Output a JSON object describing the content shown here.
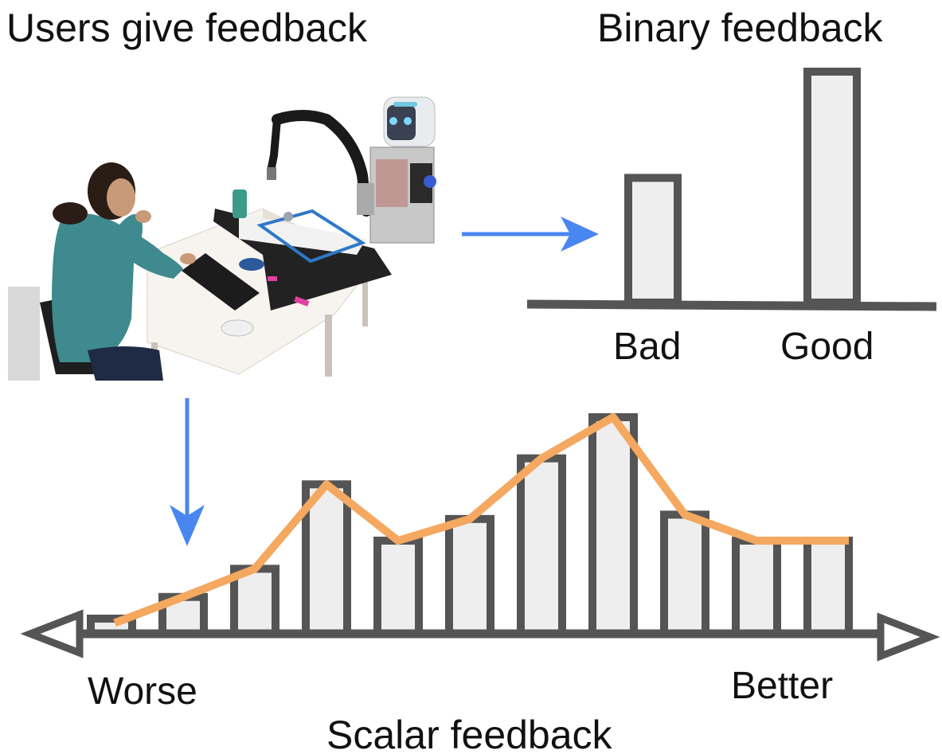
{
  "titles": {
    "users": "Users give feedback",
    "binary": "Binary feedback",
    "scalar": "Scalar feedback"
  },
  "binary_chart": {
    "labels": [
      "Bad",
      "Good"
    ],
    "values": [
      0.54,
      1.0
    ]
  },
  "scalar_chart": {
    "left_label": "Worse",
    "right_label": "Better",
    "values": [
      0.07,
      0.17,
      0.3,
      0.69,
      0.43,
      0.53,
      0.81,
      1.0,
      0.55,
      0.43,
      0.43
    ],
    "line_values": [
      0.05,
      0.17,
      0.3,
      0.69,
      0.43,
      0.53,
      0.81,
      1.0,
      0.55,
      0.43,
      0.43
    ]
  },
  "colors": {
    "bar_fill": "#eeeeee",
    "bar_stroke": "#555555",
    "axis": "#555555",
    "arrow": "#4a86f0",
    "trend_line": "#f4a860"
  },
  "icons": {
    "photo": "user-with-robot-photo",
    "flow_right": "arrow-right-icon",
    "flow_down": "arrow-down-icon"
  }
}
